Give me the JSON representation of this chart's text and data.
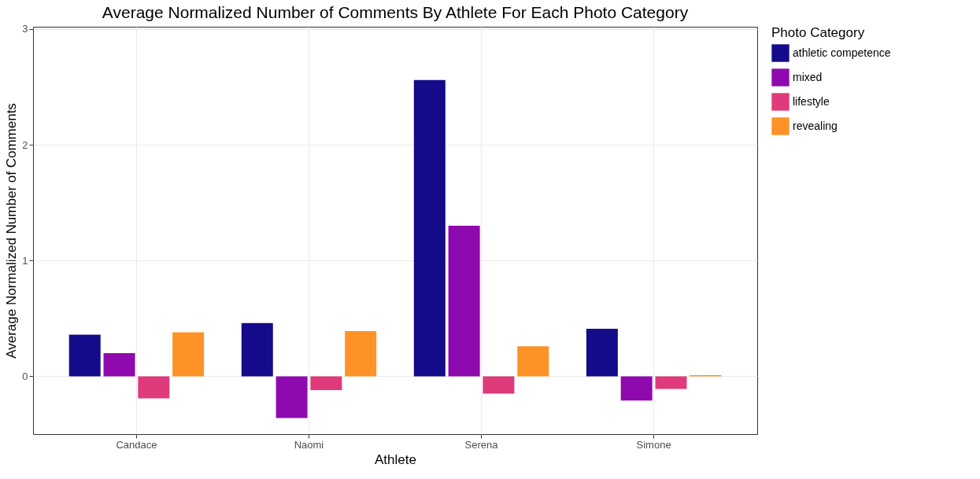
{
  "chart_data": {
    "type": "bar",
    "title": "Average Normalized Number of Comments By Athlete For Each Photo Category",
    "xlabel": "Athlete",
    "ylabel": "Average Normalized Number of Comments",
    "legend_title": "Photo Category",
    "categories": [
      "Candace",
      "Naomi",
      "Serena",
      "Simone"
    ],
    "series": [
      {
        "name": "athletic competence",
        "color": "#140b8a",
        "values": [
          0.36,
          0.46,
          2.56,
          0.41
        ]
      },
      {
        "name": "mixed",
        "color": "#8e0aae",
        "values": [
          0.2,
          -0.36,
          1.3,
          -0.21
        ]
      },
      {
        "name": "lifestyle",
        "color": "#df3a7a",
        "values": [
          -0.19,
          -0.12,
          -0.15,
          -0.11
        ]
      },
      {
        "name": "revealing",
        "color": "#fd9226",
        "values": [
          0.38,
          0.39,
          0.26,
          0.01
        ]
      }
    ],
    "ylim": [
      -0.5,
      3.02
    ],
    "yticks": [
      0,
      1,
      2,
      3
    ],
    "grid": true,
    "legend": "right"
  }
}
